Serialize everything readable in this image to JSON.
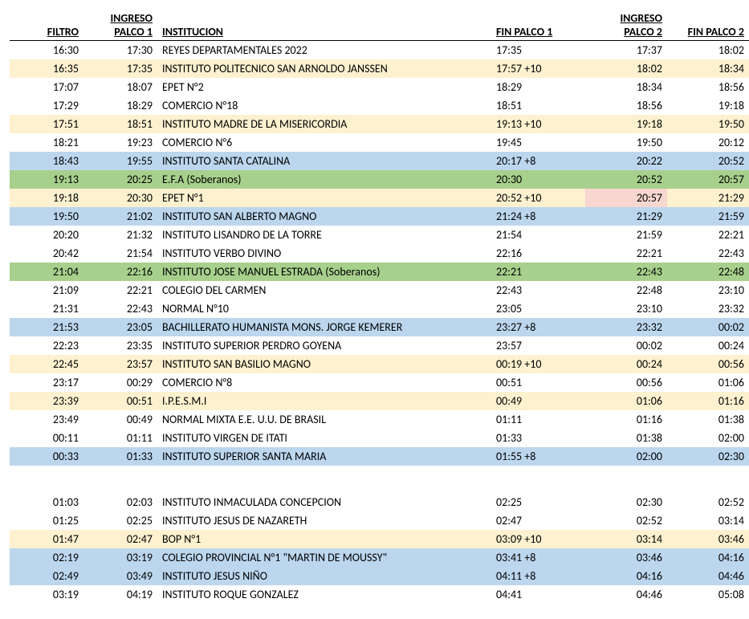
{
  "headers": {
    "filtro": "FILTRO",
    "ingreso_palco1": "INGRESO PALCO 1",
    "institucion": "INSTITUCION",
    "fin_palco1": "FIN PALCO 1",
    "ingreso_palco2": "INGRESO PALCO 2",
    "fin_palco2": "FIN PALCO 2"
  },
  "colors": {
    "white": "#ffffff",
    "yellow": "#fdf1cf",
    "blue": "#bcd6ee",
    "green": "#a8d08d",
    "pink": "#f7d7d0"
  },
  "rows": [
    {
      "filtro": "16:30",
      "ing1": "17:30",
      "inst": "REYES DEPARTAMENTALES 2022",
      "fin1": "17:35",
      "ing2": "17:37",
      "fin2": "18:02",
      "bg": "white"
    },
    {
      "filtro": "16:35",
      "ing1": "17:35",
      "inst": "INSTITUTO POLITECNICO SAN ARNOLDO JANSSEN",
      "fin1": "17:57 +10",
      "ing2": "18:02",
      "fin2": "18:34",
      "bg": "yellow"
    },
    {
      "filtro": "17:07",
      "ing1": "18:07",
      "inst": "EPET N°2",
      "fin1": "18:29",
      "ing2": "18:34",
      "fin2": "18:56",
      "bg": "white"
    },
    {
      "filtro": "17:29",
      "ing1": "18:29",
      "inst": "COMERCIO N°18",
      "fin1": "18:51",
      "ing2": "18:56",
      "fin2": "19:18",
      "bg": "white"
    },
    {
      "filtro": "17:51",
      "ing1": "18:51",
      "inst": "INSTITUTO MADRE DE LA MISERICORDIA",
      "fin1": "19:13 +10",
      "ing2": "19:18",
      "fin2": "19:50",
      "bg": "yellow"
    },
    {
      "filtro": "18:21",
      "ing1": "19:23",
      "inst": "COMERCIO N°6",
      "fin1": "19:45",
      "ing2": "19:50",
      "fin2": "20:12",
      "bg": "white"
    },
    {
      "filtro": "18:43",
      "ing1": "19:55",
      "inst": "INSTITUTO SANTA CATALINA",
      "fin1": "20:17 +8",
      "ing2": "20:22",
      "fin2": "20:52",
      "bg": "blue"
    },
    {
      "filtro": "19:13",
      "ing1": "20:25",
      "inst": "E.F.A (Soberanos)",
      "fin1": "20:30",
      "ing2": "20:52",
      "fin2": "20:57",
      "bg": "green"
    },
    {
      "filtro": "19:18",
      "ing1": "20:30",
      "inst": "EPET N°1",
      "fin1": "20:52 +10",
      "ing2": "20:57",
      "fin2": "21:29",
      "bg": "yellow",
      "ing2_bg": "pink"
    },
    {
      "filtro": "19:50",
      "ing1": "21:02",
      "inst": "INSTITUTO SAN ALBERTO MAGNO",
      "fin1": "21:24 +8",
      "ing2": "21:29",
      "fin2": "21:59",
      "bg": "blue"
    },
    {
      "filtro": "20:20",
      "ing1": "21:32",
      "inst": "INSTITUTO LISANDRO DE LA TORRE",
      "fin1": "21:54",
      "ing2": "21:59",
      "fin2": "22:21",
      "bg": "white"
    },
    {
      "filtro": "20:42",
      "ing1": "21:54",
      "inst": "INSTITUTO VERBO DIVINO",
      "fin1": "22:16",
      "ing2": "22:21",
      "fin2": "22:43",
      "bg": "white"
    },
    {
      "filtro": "21:04",
      "ing1": "22:16",
      "inst": "INSTITUTO JOSE MANUEL ESTRADA (Soberanos)",
      "fin1": "22:21",
      "ing2": "22:43",
      "fin2": "22:48",
      "bg": "green"
    },
    {
      "filtro": "21:09",
      "ing1": "22:21",
      "inst": "COLEGIO DEL CARMEN",
      "fin1": "22:43",
      "ing2": "22:48",
      "fin2": "23:10",
      "bg": "white"
    },
    {
      "filtro": "21:31",
      "ing1": "22:43",
      "inst": "NORMAL N°10",
      "fin1": "23:05",
      "ing2": "23:10",
      "fin2": "23:32",
      "bg": "white"
    },
    {
      "filtro": "21:53",
      "ing1": "23:05",
      "inst": "BACHILLERATO HUMANISTA MONS. JORGE KEMERER",
      "fin1": "23:27 +8",
      "ing2": "23:32",
      "fin2": "00:02",
      "bg": "blue"
    },
    {
      "filtro": "22:23",
      "ing1": "23:35",
      "inst": "INSTITUTO SUPERIOR PERDRO GOYENA",
      "fin1": "23:57",
      "ing2": "00:02",
      "fin2": "00:24",
      "bg": "white"
    },
    {
      "filtro": "22:45",
      "ing1": "23:57",
      "inst": "INSTITUTO SAN BASILIO MAGNO",
      "fin1": "00:19 +10",
      "ing2": "00:24",
      "fin2": "00:56",
      "bg": "yellow"
    },
    {
      "filtro": "23:17",
      "ing1": "00:29",
      "inst": "COMERCIO N°8",
      "fin1": "00:51",
      "ing2": "00:56",
      "fin2": "01:06",
      "bg": "white"
    },
    {
      "filtro": "23:39",
      "ing1": "00:51",
      "inst": "I.P.E.S.M.I",
      "fin1": "00:49",
      "ing2": "01:06",
      "fin2": "01:16",
      "bg": "yellow"
    },
    {
      "filtro": "23:49",
      "ing1": "00:49",
      "inst": "NORMAL MIXTA E.E. U.U. DE BRASIL",
      "fin1": "01:11",
      "ing2": "01:16",
      "fin2": "01:38",
      "bg": "white"
    },
    {
      "filtro": "00:11",
      "ing1": "01:11",
      "inst": "INSTITUTO VIRGEN DE ITATI",
      "fin1": "01:33",
      "ing2": "01:38",
      "fin2": "02:00",
      "bg": "white"
    },
    {
      "filtro": "00:33",
      "ing1": "01:33",
      "inst": "INSTITUTO SUPERIOR SANTA MARIA",
      "fin1": "01:55 +8",
      "ing2": "02:00",
      "fin2": "02:30",
      "bg": "blue"
    },
    {
      "spacer": true
    },
    {
      "filtro": "01:03",
      "ing1": "02:03",
      "inst": "INSTITUTO INMACULADA CONCEPCION",
      "fin1": "02:25",
      "ing2": "02:30",
      "fin2": "02:52",
      "bg": "white"
    },
    {
      "filtro": "01:25",
      "ing1": "02:25",
      "inst": "INSTITUTO JESUS DE NAZARETH",
      "fin1": "02:47",
      "ing2": "02:52",
      "fin2": "03:14",
      "bg": "white"
    },
    {
      "filtro": "01:47",
      "ing1": "02:47",
      "inst": "BOP N°1",
      "fin1": "03:09 +10",
      "ing2": "03:14",
      "fin2": "03:46",
      "bg": "yellow"
    },
    {
      "filtro": "02:19",
      "ing1": "03:19",
      "inst": "COLEGIO PROVINCIAL N°1 \"MARTIN DE MOUSSY\"",
      "fin1": "03:41 +8",
      "ing2": "03:46",
      "fin2": "04:16",
      "bg": "blue"
    },
    {
      "filtro": "02:49",
      "ing1": "03:49",
      "inst": "INSTITUTO JESUS NIÑO",
      "fin1": "04:11 +8",
      "ing2": "04:16",
      "fin2": "04:46",
      "bg": "blue"
    },
    {
      "filtro": "03:19",
      "ing1": "04:19",
      "inst": "INSTITUTO ROQUE GONZALEZ",
      "fin1": "04:41",
      "ing2": "04:46",
      "fin2": "05:08",
      "bg": "white"
    }
  ]
}
